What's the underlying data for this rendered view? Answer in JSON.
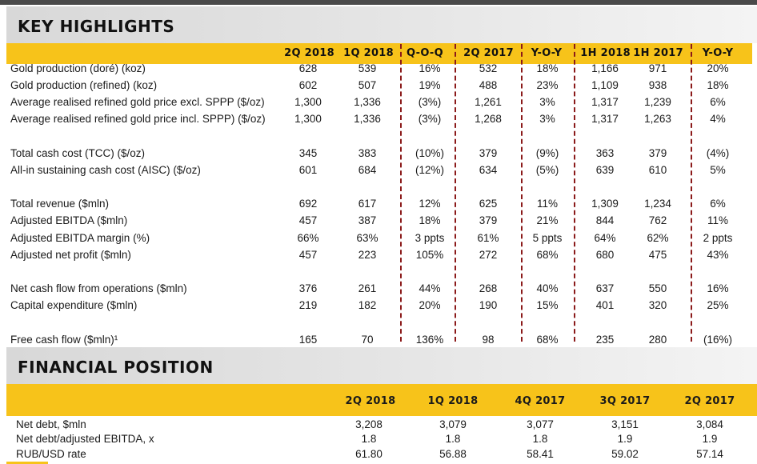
{
  "key_highlights": {
    "title": "KEY HIGHLIGHTS",
    "columns": [
      "2Q 2018",
      "1Q 2018",
      "Q-O-Q",
      "2Q 2017",
      "Y-O-Y",
      "1H 2018",
      "1H 2017",
      "Y-O-Y"
    ],
    "rows": [
      {
        "label": "Gold production (doré) (koz)",
        "values": [
          "628",
          "539",
          "16%",
          "532",
          "18%",
          "1,166",
          "971",
          "20%"
        ]
      },
      {
        "label": "Gold production (refined) (koz)",
        "values": [
          "602",
          "507",
          "19%",
          "488",
          "23%",
          "1,109",
          "938",
          "18%"
        ]
      },
      {
        "label": "Average realised refined gold price excl. SPPP ($/oz)",
        "values": [
          "1,300",
          "1,336",
          "(3%)",
          "1,261",
          "3%",
          "1,317",
          "1,239",
          "6%"
        ]
      },
      {
        "label": "Average realised refined gold price incl. SPPP) ($/oz)",
        "values": [
          "1,300",
          "1,336",
          "(3%)",
          "1,268",
          "3%",
          "1,317",
          "1,263",
          "4%"
        ]
      },
      {
        "label": "Total cash cost (TCC) ($/oz)",
        "values": [
          "345",
          "383",
          "(10%)",
          "379",
          "(9%)",
          "363",
          "379",
          "(4%)"
        ]
      },
      {
        "label": "All-in sustaining cash cost (AISC) ($/oz)",
        "values": [
          "601",
          "684",
          "(12%)",
          "634",
          "(5%)",
          "639",
          "610",
          "5%"
        ]
      },
      {
        "label": "Total revenue ($mln)",
        "values": [
          "692",
          "617",
          "12%",
          "625",
          "11%",
          "1,309",
          "1,234",
          "6%"
        ]
      },
      {
        "label": "Adjusted EBITDA ($mln)",
        "values": [
          "457",
          "387",
          "18%",
          "379",
          "21%",
          "844",
          "762",
          "11%"
        ]
      },
      {
        "label": "Adjusted EBITDA margin (%)",
        "values": [
          "66%",
          "63%",
          "3 ppts",
          "61%",
          "5 ppts",
          "64%",
          "62%",
          "2 ppts"
        ]
      },
      {
        "label": "Adjusted net profit ($mln)",
        "values": [
          "457",
          "223",
          "105%",
          "272",
          "68%",
          "680",
          "475",
          "43%"
        ]
      },
      {
        "label": "Net cash flow from operations ($mln)",
        "values": [
          "376",
          "261",
          "44%",
          "268",
          "40%",
          "637",
          "550",
          "16%"
        ]
      },
      {
        "label": "Capital expenditure ($mln)",
        "values": [
          "219",
          "182",
          "20%",
          "190",
          "15%",
          "401",
          "320",
          "25%"
        ]
      },
      {
        "label": "Free cash flow ($mln)¹",
        "values": [
          "165",
          "70",
          "136%",
          "98",
          "68%",
          "235",
          "280",
          "(16%)"
        ]
      }
    ]
  },
  "financial_position": {
    "title": "FINANCIAL POSITION",
    "columns": [
      "2Q 2018",
      "1Q 2018",
      "4Q 2017",
      "3Q 2017",
      "2Q 2017"
    ],
    "rows": [
      {
        "label": "Net debt, $mln",
        "values": [
          "3,208",
          "3,079",
          "3,077",
          "3,151",
          "3,084"
        ]
      },
      {
        "label": "Net debt/adjusted EBITDA, x",
        "values": [
          "1.8",
          "1.8",
          "1.8",
          "1.9",
          "1.9"
        ]
      },
      {
        "label": "RUB/USD rate",
        "values": [
          "61.80",
          "56.88",
          "58.41",
          "59.02",
          "57.14"
        ]
      }
    ]
  },
  "colors": {
    "accent_yellow": "#f7c31a",
    "divider_red": "#8b1a1a",
    "header_gray": "#dcdcdc"
  }
}
